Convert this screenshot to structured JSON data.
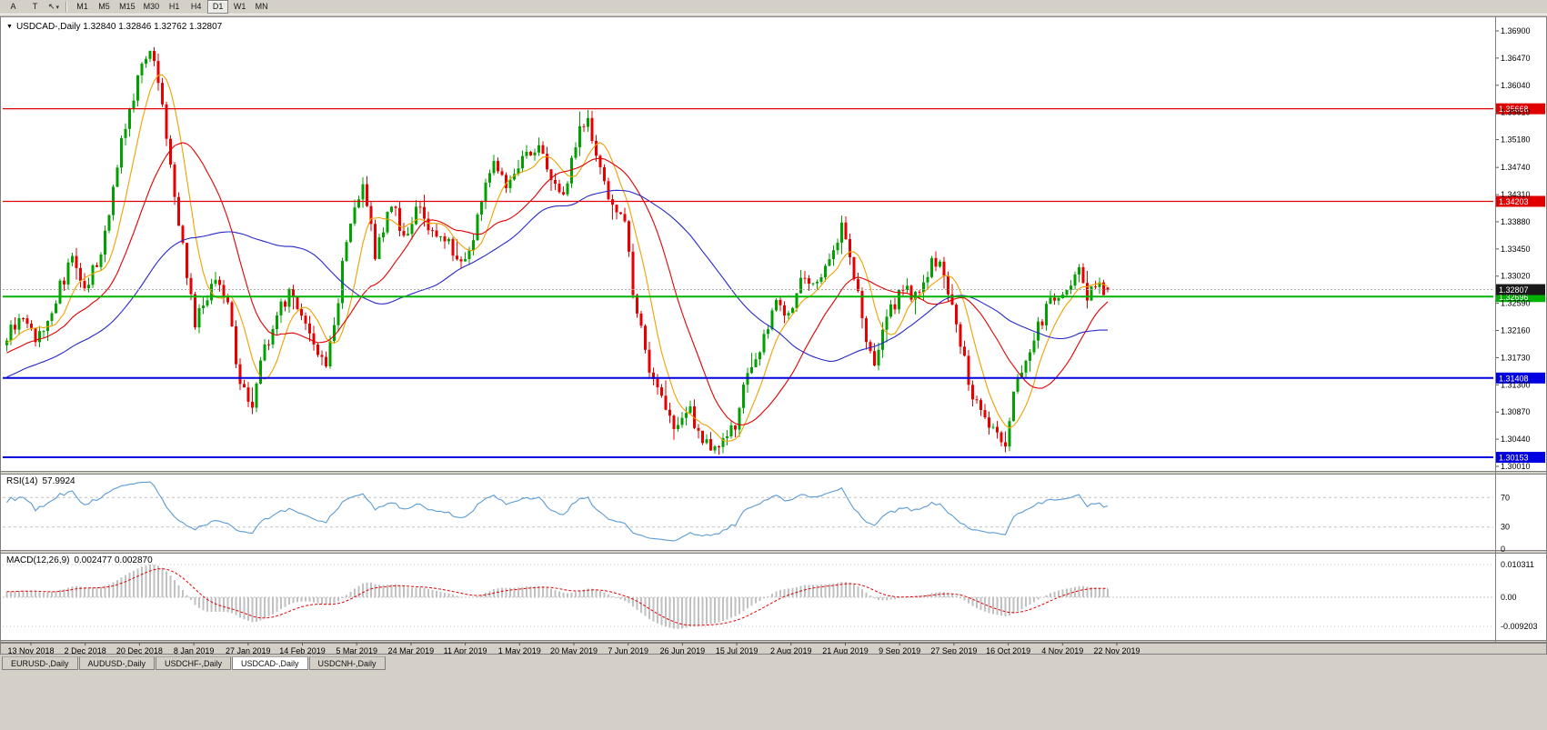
{
  "toolbar": {
    "buttons_left": [
      {
        "id": "annotation-a",
        "label": "A"
      },
      {
        "id": "annotation-t",
        "label": "T"
      }
    ],
    "cursor_glyph": "↖",
    "cursor_caret": "▾",
    "timeframes": [
      "M1",
      "M5",
      "M15",
      "M30",
      "H1",
      "H4",
      "D1",
      "W1",
      "MN"
    ],
    "active_timeframe": "D1"
  },
  "chart_window": {
    "marker": "▼",
    "symbol_title": "USDCAD-,Daily",
    "ohlc_text": "1.32840 1.32846 1.32762 1.32807"
  },
  "tabs": {
    "labels": [
      "EURUSD-,Daily",
      "AUDUSD-,Daily",
      "USDCHF-,Daily",
      "USDCAD-,Daily",
      "USDCNH-,Daily"
    ],
    "active": "USDCAD-,Daily"
  },
  "chart_data": {
    "type": "candlestick",
    "symbol": "USDCAD",
    "timeframe": "Daily",
    "last_ohlc": {
      "open": 1.3284,
      "high": 1.32846,
      "low": 1.32762,
      "close": 1.32807
    },
    "candle_count": 270,
    "y_axis_labels": [
      "1.36900",
      "1.36470",
      "1.36040",
      "1.35610",
      "1.35180",
      "1.34740",
      "1.34310",
      "1.33880",
      "1.33450",
      "1.33020",
      "1.32590",
      "1.32160",
      "1.31730",
      "1.31300",
      "1.30870",
      "1.30440",
      "1.30010"
    ],
    "y_axis_range": [
      1.3001,
      1.369
    ],
    "x_axis_dates": [
      "13 Nov 2018",
      "2 Dec 2018",
      "20 Dec 2018",
      "8 Jan 2019",
      "27 Jan 2019",
      "14 Feb 2019",
      "5 Mar 2019",
      "24 Mar 2019",
      "11 Apr 2019",
      "1 May 2019",
      "20 May 2019",
      "7 Jun 2019",
      "26 Jun 2019",
      "15 Jul 2019",
      "2 Aug 2019",
      "21 Aug 2019",
      "9 Sep 2019",
      "27 Sep 2019",
      "16 Oct 2019",
      "4 Nov 2019",
      "22 Nov 2019"
    ],
    "horizontal_lines": [
      {
        "value": 1.35668,
        "label": "1.35668",
        "color": "#e00000",
        "width": 1.2
      },
      {
        "value": 1.34203,
        "label": "1.34203",
        "color": "#e00000",
        "width": 1.2
      },
      {
        "value": 1.32696,
        "label": "1.32696",
        "color": "#00b300",
        "width": 2
      },
      {
        "value": 1.31408,
        "label": "1.31408",
        "color": "#0000e0",
        "width": 2
      },
      {
        "value": 1.30153,
        "label": "1.30153",
        "color": "#0000e0",
        "width": 2
      }
    ],
    "current_price": {
      "value": 1.32807,
      "label": "1.32807",
      "tag_color": "#1a1a1a"
    },
    "price_anchors": [
      [
        0,
        1.3205
      ],
      [
        4,
        1.324
      ],
      [
        7,
        1.3195
      ],
      [
        11,
        1.3255
      ],
      [
        14,
        1.33
      ],
      [
        16,
        1.333
      ],
      [
        19,
        1.329
      ],
      [
        22,
        1.332
      ],
      [
        25,
        1.34
      ],
      [
        28,
        1.352
      ],
      [
        30,
        1.356
      ],
      [
        32,
        1.362
      ],
      [
        34,
        1.3655
      ],
      [
        36,
        1.364
      ],
      [
        38,
        1.358
      ],
      [
        40,
        1.348
      ],
      [
        43,
        1.335
      ],
      [
        46,
        1.323
      ],
      [
        48,
        1.3255
      ],
      [
        51,
        1.329
      ],
      [
        54,
        1.327
      ],
      [
        56,
        1.316
      ],
      [
        58,
        1.312
      ],
      [
        60,
        1.309
      ],
      [
        62,
        1.317
      ],
      [
        66,
        1.324
      ],
      [
        69,
        1.327
      ],
      [
        72,
        1.3235
      ],
      [
        76,
        1.3185
      ],
      [
        78,
        1.3155
      ],
      [
        80,
        1.322
      ],
      [
        82,
        1.332
      ],
      [
        84,
        1.338
      ],
      [
        87,
        1.3445
      ],
      [
        90,
        1.334
      ],
      [
        92,
        1.338
      ],
      [
        94,
        1.342
      ],
      [
        97,
        1.336
      ],
      [
        99,
        1.3385
      ],
      [
        101,
        1.342
      ],
      [
        104,
        1.337
      ],
      [
        108,
        1.335
      ],
      [
        111,
        1.332
      ],
      [
        113,
        1.3335
      ],
      [
        116,
        1.342
      ],
      [
        119,
        1.348
      ],
      [
        122,
        1.345
      ],
      [
        124,
        1.347
      ],
      [
        127,
        1.349
      ],
      [
        130,
        1.35
      ],
      [
        133,
        1.3455
      ],
      [
        136,
        1.344
      ],
      [
        138,
        1.348
      ],
      [
        140,
        1.353
      ],
      [
        142,
        1.356
      ],
      [
        144,
        1.3485
      ],
      [
        147,
        1.343
      ],
      [
        149,
        1.3415
      ],
      [
        151,
        1.338
      ],
      [
        153,
        1.328
      ],
      [
        155,
        1.322
      ],
      [
        157,
        1.3155
      ],
      [
        159,
        1.3115
      ],
      [
        161,
        1.309
      ],
      [
        164,
        1.306
      ],
      [
        167,
        1.3085
      ],
      [
        170,
        1.3045
      ],
      [
        172,
        1.3028
      ],
      [
        175,
        1.3045
      ],
      [
        178,
        1.307
      ],
      [
        180,
        1.3125
      ],
      [
        182,
        1.3155
      ],
      [
        185,
        1.321
      ],
      [
        188,
        1.326
      ],
      [
        191,
        1.3235
      ],
      [
        194,
        1.329
      ],
      [
        197,
        1.328
      ],
      [
        200,
        1.331
      ],
      [
        204,
        1.3375
      ],
      [
        207,
        1.33
      ],
      [
        210,
        1.3205
      ],
      [
        212,
        1.317
      ],
      [
        215,
        1.3235
      ],
      [
        219,
        1.328
      ],
      [
        222,
        1.327
      ],
      [
        226,
        1.3325
      ],
      [
        229,
        1.331
      ],
      [
        232,
        1.323
      ],
      [
        235,
        1.3135
      ],
      [
        238,
        1.3085
      ],
      [
        241,
        1.306
      ],
      [
        244,
        1.3042
      ],
      [
        247,
        1.314
      ],
      [
        250,
        1.3185
      ],
      [
        253,
        1.3235
      ],
      [
        256,
        1.327
      ],
      [
        259,
        1.329
      ],
      [
        262,
        1.3305
      ],
      [
        264,
        1.327
      ],
      [
        266,
        1.329
      ],
      [
        269,
        1.32807
      ]
    ],
    "moving_averages": [
      {
        "period": 8,
        "color": "#f0a000"
      },
      {
        "period": 21,
        "color": "#e00000"
      },
      {
        "period": 50,
        "color": "#2828c8"
      }
    ],
    "indicators": {
      "rsi": {
        "name": "RSI(14)",
        "current": "57.9924",
        "period": 14,
        "levels": [
          70,
          30,
          0
        ],
        "color": "#5b9bd5"
      },
      "macd": {
        "name": "MACD(12,26,9)",
        "values_text": "0.002477 0.002870",
        "scale_labels": [
          {
            "value": 0.010311,
            "label": "0.010311"
          },
          {
            "value": 0.0,
            "label": "0.00"
          },
          {
            "value": -0.009203,
            "label": "-0.009203"
          }
        ],
        "histogram_color": "#c0c0c0",
        "signal_color": "#e00000"
      }
    },
    "colors": {
      "up": "#00a000",
      "down": "#e60000",
      "background": "#ffffff",
      "axis_text": "#000000",
      "grid_dash": "#c0c0c0",
      "current_line": "#aaaaaa"
    }
  }
}
